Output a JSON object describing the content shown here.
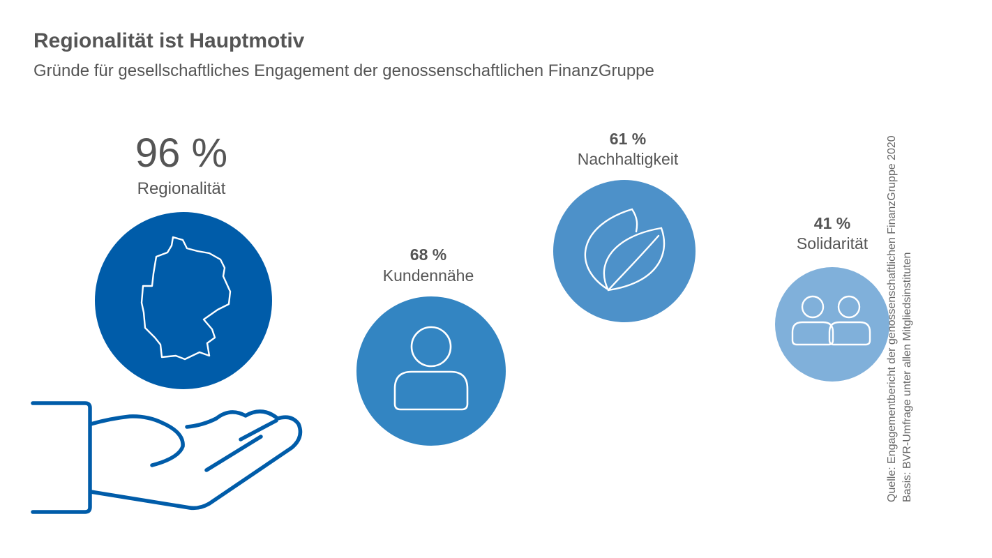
{
  "title": "Regionalität ist Hauptmotiv",
  "subtitle": "Gründe für gesellschaftliches Engagement der genossenschaftlichen FinanzGruppe",
  "source": {
    "line1": "Quelle: Engagementbericht der genossenschaftlichen FinanzGruppe 2020",
    "line2": "Basis: BVR-Umfrage unter allen Mitgliedsinstituten"
  },
  "colors": {
    "text": "#555555",
    "hand": "#005ca9"
  },
  "chart_data": {
    "type": "bubble",
    "unit": "%",
    "categories": [
      "Regionalität",
      "Kundennähe",
      "Nachhaltigkeit",
      "Solidarität"
    ],
    "values": [
      96,
      68,
      61,
      41
    ],
    "value_labels": [
      "96 %",
      "68 %",
      "61 %",
      "41 %"
    ],
    "colors": [
      "#005ca9",
      "#3385c2",
      "#4d91c9",
      "#80b0da"
    ],
    "icons": [
      "germany-map-icon",
      "person-icon",
      "leaf-icon",
      "people-icon"
    ],
    "decorations": [
      "open-hand-icon"
    ]
  }
}
